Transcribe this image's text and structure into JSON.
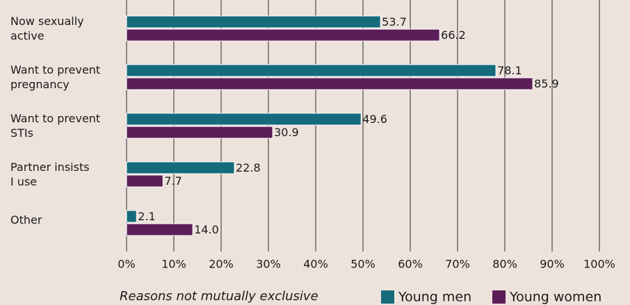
{
  "chart_data": {
    "type": "bar",
    "orientation": "horizontal",
    "categories": [
      [
        "Now sexually",
        "active"
      ],
      [
        "Want to prevent",
        "pregnancy"
      ],
      [
        "Want to prevent",
        "STIs"
      ],
      [
        "Partner insists",
        "I use"
      ],
      [
        "Other"
      ]
    ],
    "series": [
      {
        "name": "Young men",
        "color": "#156b7c",
        "values": [
          53.7,
          78.1,
          49.6,
          22.8,
          2.1
        ],
        "value_labels": [
          "53.7",
          "78.1",
          "49.6",
          "22.8",
          "2.1"
        ]
      },
      {
        "name": "Young women",
        "color": "#5c1e58",
        "values": [
          66.2,
          85.9,
          30.9,
          7.7,
          14.0
        ],
        "value_labels": [
          "66.2",
          "85.9",
          "30.9",
          "7.7",
          "14.0"
        ]
      }
    ],
    "xlim": [
      0,
      100
    ],
    "xticks": [
      {
        "value": 0,
        "label": "0%"
      },
      {
        "value": 10,
        "label": "10%"
      },
      {
        "value": 20,
        "label": "20%"
      },
      {
        "value": 30,
        "label": "30%"
      },
      {
        "value": 40,
        "label": "40%"
      },
      {
        "value": 50,
        "label": "50%"
      },
      {
        "value": 60,
        "label": "60%"
      },
      {
        "value": 70,
        "label": "70%"
      },
      {
        "value": 80,
        "label": "80%"
      },
      {
        "value": 90,
        "label": "90%"
      },
      {
        "value": 100,
        "label": "100%"
      }
    ],
    "grid": true,
    "note": "Reasons not mutually exclusive",
    "legend": "bottom-right"
  }
}
